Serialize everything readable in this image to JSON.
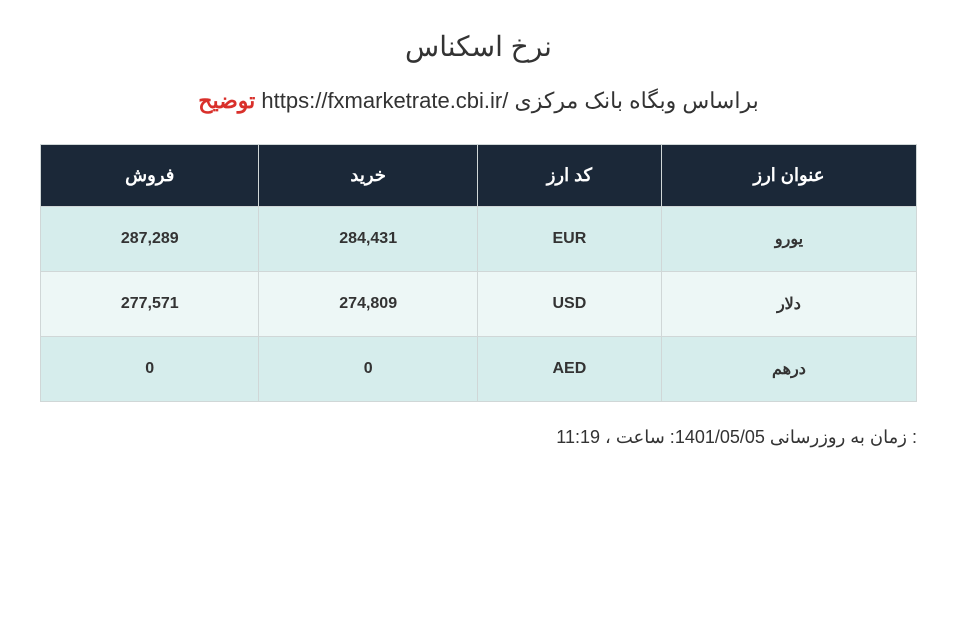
{
  "title": "نرخ اسکناس",
  "subtitle": {
    "prefix": "براساس وبگاه بانک مرکزی",
    "url": "https://fxmarketrate.cbi.ir/",
    "tozih": "توضیح"
  },
  "table": {
    "columns": [
      "عنوان ارز",
      "کد ارز",
      "خرید",
      "فروش"
    ],
    "rows": [
      {
        "name": "یورو",
        "code": "EUR",
        "buy": "284,431",
        "sell": "287,289"
      },
      {
        "name": "دلار",
        "code": "USD",
        "buy": "274,809",
        "sell": "277,571"
      },
      {
        "name": "درهم",
        "code": "AED",
        "buy": "0",
        "sell": "0"
      }
    ],
    "header_bg": "#1b2838",
    "header_color": "#ffffff",
    "row_odd_bg": "#d6edec",
    "row_even_bg": "#edf7f6",
    "border_color": "#d0d7d7"
  },
  "update": {
    "label": "زمان به روزرسانی :",
    "date": "1401/05/05",
    "sep": "، ساعت :",
    "time": "11:19"
  }
}
